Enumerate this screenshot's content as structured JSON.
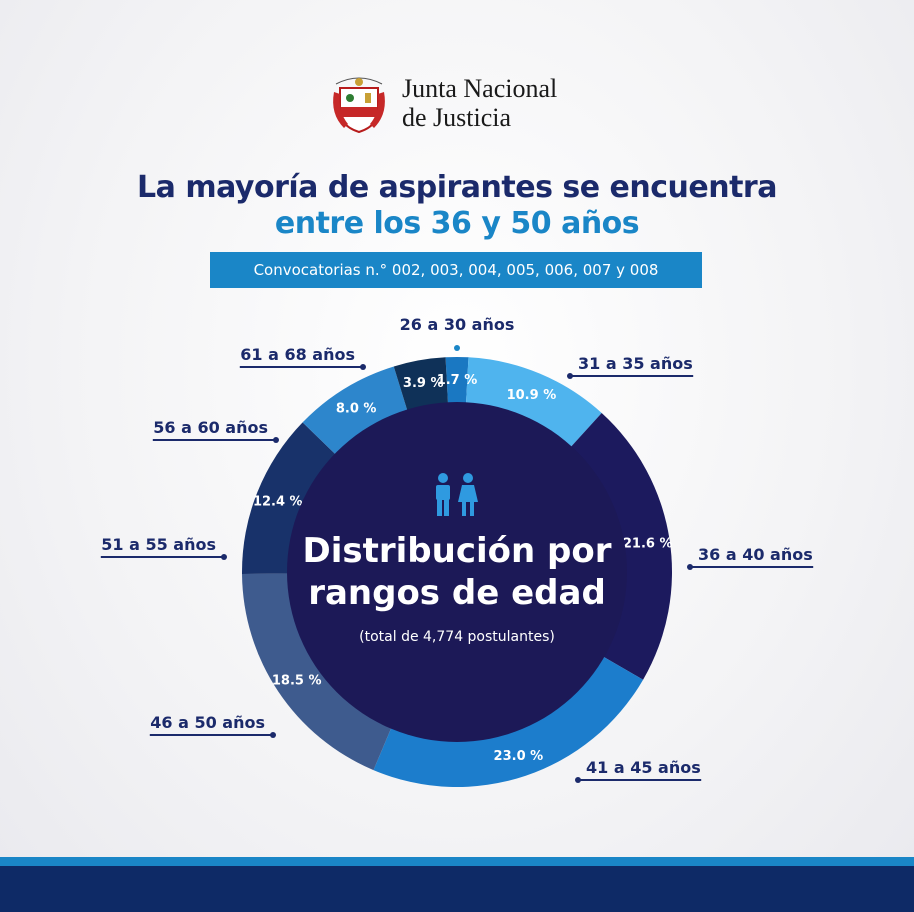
{
  "header": {
    "seal_text": "REPÚBLICA DEL PERÚ",
    "org_line1": "Junta Nacional",
    "org_line2": "de Justicia"
  },
  "title_line1": "La mayoría de aspirantes se encuentra",
  "title_line2": "entre los 36 y 50 años",
  "subtitle": "Convocatorias n.° 002, 003, 004, 005, 006, 007 y 008",
  "center": {
    "line1": "Distribución por",
    "line2": "rangos de edad",
    "line3": "(total de 4,774 postulantes)"
  },
  "colors": {
    "navy": "#1b2a6b",
    "accent": "#1a86c7",
    "center_fill": "#1c1957"
  },
  "chart_data": {
    "type": "pie",
    "title": "Distribución por rangos de edad",
    "subtitle": "(total de 4,774 postulantes)",
    "categories": [
      "26 a 30 años",
      "31 a 35 años",
      "36 a 40 años",
      "41 a 45 años",
      "46 a 50 años",
      "51 a 55 años",
      "56 a 60 años",
      "61 a 68 años"
    ],
    "values": [
      1.7,
      10.9,
      21.6,
      23.0,
      18.5,
      12.4,
      8.0,
      3.9
    ],
    "value_labels": [
      "1.7 %",
      "10.9 %",
      "21.6 %",
      "23.0 %",
      "18.5 %",
      "12.4 %",
      "8.0 %",
      "3.9 %"
    ],
    "colors": [
      "#1a78c2",
      "#4fb4ee",
      "#1c1a5e",
      "#1c7dcc",
      "#3e5b8e",
      "#18326a",
      "#2d86cc",
      "#0f3158"
    ]
  }
}
